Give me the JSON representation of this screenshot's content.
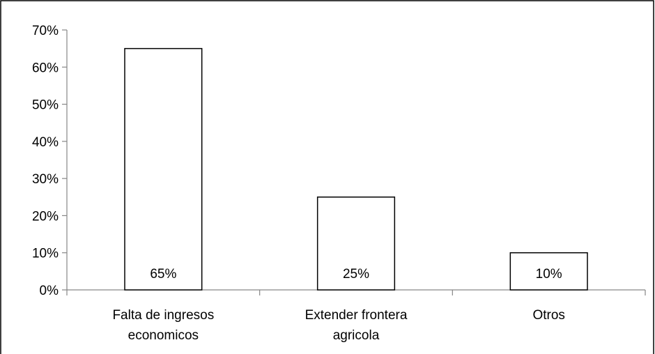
{
  "chart_data": {
    "type": "bar",
    "title": "",
    "xlabel": "",
    "ylabel": "",
    "categories": [
      [
        "Falta de ingresos",
        "economicos"
      ],
      [
        "Extender frontera",
        "agricola"
      ],
      [
        "Otros"
      ]
    ],
    "values": [
      65,
      25,
      10
    ],
    "data_labels": [
      "65%",
      "25%",
      "10%"
    ],
    "ylim": [
      0,
      70
    ],
    "yticks": [
      0,
      10,
      20,
      30,
      40,
      50,
      60,
      70
    ],
    "ytick_labels": [
      "0%",
      "10%",
      "20%",
      "30%",
      "40%",
      "50%",
      "60%",
      "70%"
    ],
    "grid": false,
    "legend": "none",
    "colors": {
      "bar_fill": "#ffffff",
      "bar_stroke": "#000000",
      "axis": "#868686",
      "border": "#000000"
    }
  }
}
